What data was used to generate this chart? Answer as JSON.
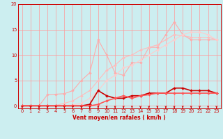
{
  "xlabel": "Vent moyen/en rafales ( km/h )",
  "xlim": [
    -0.5,
    23.5
  ],
  "ylim": [
    -0.5,
    20
  ],
  "yticks": [
    0,
    5,
    10,
    15,
    20
  ],
  "xticks": [
    0,
    1,
    2,
    3,
    4,
    5,
    6,
    7,
    8,
    9,
    10,
    11,
    12,
    13,
    14,
    15,
    16,
    17,
    18,
    19,
    20,
    21,
    22,
    23
  ],
  "bg_color": "#cceef0",
  "grid_color": "#ff9999",
  "x": [
    0,
    1,
    2,
    3,
    4,
    5,
    6,
    7,
    8,
    9,
    10,
    11,
    12,
    13,
    14,
    15,
    16,
    17,
    18,
    19,
    20,
    21,
    22,
    23
  ],
  "series": [
    [
      0,
      0,
      0,
      2.2,
      2.3,
      2.4,
      3.0,
      5.0,
      6.5,
      13.0,
      10.0,
      6.5,
      6.0,
      8.5,
      8.5,
      11.5,
      11.5,
      14.0,
      16.5,
      14.0,
      13.0,
      13.0,
      13.0,
      13.0
    ],
    [
      0,
      0,
      0,
      0,
      0.1,
      0.5,
      1.0,
      2.0,
      3.0,
      5.0,
      7.0,
      8.0,
      9.5,
      10.0,
      11.0,
      11.5,
      12.0,
      13.0,
      14.0,
      13.8,
      13.5,
      13.5,
      13.5,
      13.0
    ],
    [
      0,
      0,
      0,
      0,
      0,
      0,
      0.2,
      0.5,
      1.5,
      3.0,
      5.0,
      6.0,
      7.5,
      8.0,
      9.0,
      10.0,
      11.0,
      12.0,
      13.0,
      14.0,
      14.5,
      14.5,
      14.0,
      13.0
    ],
    [
      0,
      0,
      0,
      0,
      0,
      0,
      0,
      0,
      0.3,
      3.0,
      2.0,
      1.5,
      1.5,
      2.0,
      2.0,
      2.5,
      2.5,
      2.5,
      3.5,
      3.5,
      3.0,
      3.0,
      3.0,
      2.5
    ],
    [
      0,
      0,
      0,
      0,
      0,
      0,
      0,
      0,
      0,
      0.3,
      1.0,
      1.5,
      2.0,
      1.5,
      2.0,
      2.2,
      2.5,
      2.5,
      2.5,
      2.5,
      2.5,
      2.5,
      2.5,
      2.5
    ]
  ],
  "colors": [
    "#ffaaaa",
    "#ffbbbb",
    "#ffcccc",
    "#cc0000",
    "#ff5555"
  ],
  "linewidths": [
    0.8,
    0.8,
    0.8,
    1.2,
    1.2
  ],
  "marker_size": 2.0,
  "tick_color": "#cc0000",
  "arrow_color": "#cc0000",
  "label_fontsize": 5.5,
  "tick_fontsize": 4.8
}
